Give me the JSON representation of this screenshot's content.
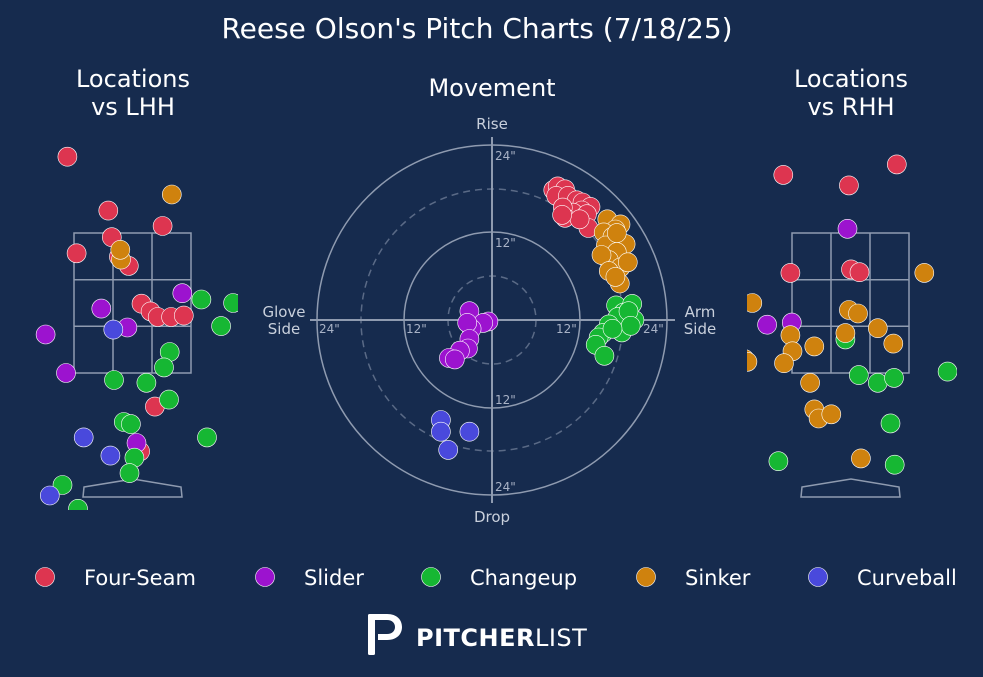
{
  "title": "Reese Olson's Pitch Charts (7/18/25)",
  "brand": {
    "name_bold": "PITCHER",
    "name_light": "LIST",
    "logo_icon": "pitcherlist-p-icon"
  },
  "colors": {
    "background": "#162b4e",
    "Four-Seam": "#dd3550",
    "Slider": "#9c13cf",
    "Changeup": "#16b733",
    "Sinker": "#cf820e",
    "Curveball": "#4949dc"
  },
  "legend": [
    {
      "label": "Four-Seam",
      "color": "#dd3550"
    },
    {
      "label": "Slider",
      "color": "#9c13cf"
    },
    {
      "label": "Changeup",
      "color": "#16b733"
    },
    {
      "label": "Sinker",
      "color": "#cf820e"
    },
    {
      "label": "Curveball",
      "color": "#4949dc"
    }
  ],
  "chart_data": [
    {
      "type": "scatter",
      "title": "Locations\nvs LHH",
      "series": [
        {
          "name": "Four-Seam",
          "points": [
            [
              -0.93,
              4.59
            ],
            [
              -0.35,
              3.82
            ],
            [
              0.42,
              3.6
            ],
            [
              -0.3,
              3.44
            ],
            [
              -0.8,
              3.21
            ],
            [
              -0.06,
              3.03
            ],
            [
              -0.2,
              3.16
            ],
            [
              0.12,
              2.49
            ],
            [
              0.25,
              2.38
            ],
            [
              0.35,
              2.3
            ],
            [
              0.54,
              2.3
            ],
            [
              0.72,
              2.32
            ],
            [
              1.65,
              4.35
            ],
            [
              1.66,
              1.54
            ],
            [
              0.31,
              1.02
            ],
            [
              0.1,
              0.38
            ]
          ]
        },
        {
          "name": "Slider",
          "points": [
            [
              0.7,
              2.64
            ],
            [
              -0.45,
              2.42
            ],
            [
              -0.08,
              2.15
            ],
            [
              -1.24,
              2.05
            ],
            [
              -1.76,
              1.84
            ],
            [
              -1.68,
              1.58
            ],
            [
              -0.95,
              1.5
            ],
            [
              -1.85,
              0.75
            ],
            [
              0.05,
              0.5
            ]
          ]
        },
        {
          "name": "Changeup",
          "points": [
            [
              0.97,
              2.55
            ],
            [
              1.42,
              2.5
            ],
            [
              1.25,
              2.17
            ],
            [
              0.52,
              1.8
            ],
            [
              0.44,
              1.58
            ],
            [
              -0.27,
              1.4
            ],
            [
              0.19,
              1.36
            ],
            [
              0.51,
              1.12
            ],
            [
              -0.13,
              0.8
            ],
            [
              -0.03,
              0.77
            ],
            [
              1.05,
              0.58
            ],
            [
              0.02,
              0.29
            ],
            [
              -0.05,
              0.07
            ],
            [
              -1.0,
              -0.1
            ],
            [
              -0.78,
              -0.44
            ],
            [
              -0.8,
              -0.74
            ],
            [
              -0.6,
              -0.95
            ],
            [
              -0.68,
              -1.1
            ]
          ]
        },
        {
          "name": "Sinker",
          "points": [
            [
              0.55,
              4.05
            ],
            [
              -0.17,
              3.12
            ],
            [
              -0.18,
              3.26
            ]
          ]
        },
        {
          "name": "Curveball",
          "points": [
            [
              -0.28,
              2.12
            ],
            [
              -0.7,
              0.58
            ],
            [
              -0.32,
              0.32
            ],
            [
              -1.18,
              -0.25
            ]
          ]
        }
      ]
    },
    {
      "type": "scatter",
      "title": "Movement",
      "axis_labels": {
        "top": "Rise",
        "bottom": "Drop",
        "left": "Glove\nSide",
        "right": "Arm\nSide"
      },
      "rings": [
        "12\"",
        "24\""
      ],
      "xlim": [
        -24,
        24
      ],
      "ylim": [
        -24,
        24
      ],
      "series": [
        {
          "name": "Four-Seam",
          "points": [
            [
              8.4,
              17.8
            ],
            [
              9.0,
              18.3
            ],
            [
              10.0,
              17.9
            ],
            [
              8.8,
              17.0
            ],
            [
              10.4,
              17.0
            ],
            [
              11.6,
              16.4
            ],
            [
              12.4,
              16.1
            ],
            [
              13.5,
              15.5
            ],
            [
              12.3,
              15.0
            ],
            [
              11.1,
              14.7
            ],
            [
              9.7,
              15.4
            ],
            [
              10.0,
              14.0
            ],
            [
              13.0,
              14.5
            ],
            [
              13.2,
              12.6
            ],
            [
              12.0,
              13.8
            ],
            [
              9.6,
              14.4
            ]
          ]
        },
        {
          "name": "Slider",
          "points": [
            [
              -3.1,
              1.2
            ],
            [
              -0.5,
              -0.2
            ],
            [
              -1.2,
              -0.4
            ],
            [
              -2.8,
              -1.2
            ],
            [
              -3.4,
              -0.4
            ],
            [
              -3.1,
              -2.6
            ],
            [
              -3.3,
              -3.9
            ],
            [
              -4.4,
              -4.2
            ],
            [
              -5.9,
              -5.2
            ],
            [
              -5.1,
              -5.4
            ]
          ]
        },
        {
          "name": "Changeup",
          "points": [
            [
              17.6,
              -0.2
            ],
            [
              16.3,
              -0.8
            ],
            [
              19.5,
              0.0
            ],
            [
              17.0,
              2.0
            ],
            [
              19.2,
              2.2
            ],
            [
              17.8,
              -1.7
            ],
            [
              18.0,
              1.0
            ],
            [
              17.2,
              0.4
            ],
            [
              16.0,
              -0.6
            ],
            [
              15.2,
              -1.8
            ],
            [
              14.6,
              -2.4
            ],
            [
              14.2,
              -3.4
            ],
            [
              15.4,
              -4.9
            ],
            [
              18.7,
              1.2
            ],
            [
              19.0,
              -0.8
            ],
            [
              16.5,
              -1.2
            ]
          ]
        },
        {
          "name": "Sinker",
          "points": [
            [
              15.8,
              13.8
            ],
            [
              17.6,
              13.1
            ],
            [
              16.9,
              12.4
            ],
            [
              15.3,
              12.0
            ],
            [
              16.5,
              11.4
            ],
            [
              18.3,
              10.4
            ],
            [
              15.6,
              10.2
            ],
            [
              17.1,
              9.3
            ],
            [
              16.0,
              8.2
            ],
            [
              15.0,
              8.9
            ],
            [
              17.6,
              7.2
            ],
            [
              16.0,
              6.7
            ],
            [
              18.6,
              7.9
            ],
            [
              17.5,
              5.0
            ],
            [
              16.9,
              5.9
            ],
            [
              17.1,
              11.9
            ]
          ]
        },
        {
          "name": "Curveball",
          "points": [
            [
              -7.0,
              -13.7
            ],
            [
              -7.0,
              -15.3
            ],
            [
              -3.1,
              -15.3
            ],
            [
              -6.0,
              -17.8
            ]
          ]
        }
      ]
    },
    {
      "type": "scatter",
      "title": "Locations\nvs RHH",
      "series": [
        {
          "name": "Four-Seam",
          "points": [
            [
              -0.96,
              4.33
            ],
            [
              -0.03,
              4.18
            ],
            [
              0.65,
              4.48
            ],
            [
              -0.86,
              2.93
            ],
            [
              0.0,
              2.98
            ],
            [
              0.12,
              2.94
            ]
          ]
        },
        {
          "name": "Slider",
          "points": [
            [
              -0.05,
              3.56
            ],
            [
              -1.19,
              2.19
            ],
            [
              -0.84,
              2.22
            ]
          ]
        },
        {
          "name": "Changeup",
          "points": [
            [
              -0.08,
              1.98
            ],
            [
              0.38,
              1.36
            ],
            [
              0.61,
              1.43
            ],
            [
              0.11,
              1.47
            ],
            [
              1.37,
              1.52
            ],
            [
              0.56,
              0.78
            ],
            [
              -1.03,
              0.24
            ],
            [
              0.62,
              0.19
            ],
            [
              -0.35,
              -0.62
            ],
            [
              2.58,
              2.07
            ]
          ]
        },
        {
          "name": "Sinker",
          "points": [
            [
              -1.4,
              2.5
            ],
            [
              -0.03,
              2.4
            ],
            [
              0.1,
              2.35
            ],
            [
              -0.08,
              2.07
            ],
            [
              0.38,
              2.14
            ],
            [
              -0.86,
              2.04
            ],
            [
              0.6,
              1.92
            ],
            [
              1.04,
              2.93
            ],
            [
              -1.51,
              1.7
            ],
            [
              -0.83,
              1.81
            ],
            [
              -0.95,
              1.64
            ],
            [
              -1.47,
              1.66
            ],
            [
              -0.52,
              1.88
            ],
            [
              -0.58,
              1.36
            ],
            [
              -0.52,
              0.98
            ],
            [
              -0.46,
              0.85
            ],
            [
              -0.28,
              0.91
            ],
            [
              0.14,
              0.28
            ]
          ]
        },
        {
          "name": "Curveball",
          "points": []
        }
      ]
    }
  ]
}
